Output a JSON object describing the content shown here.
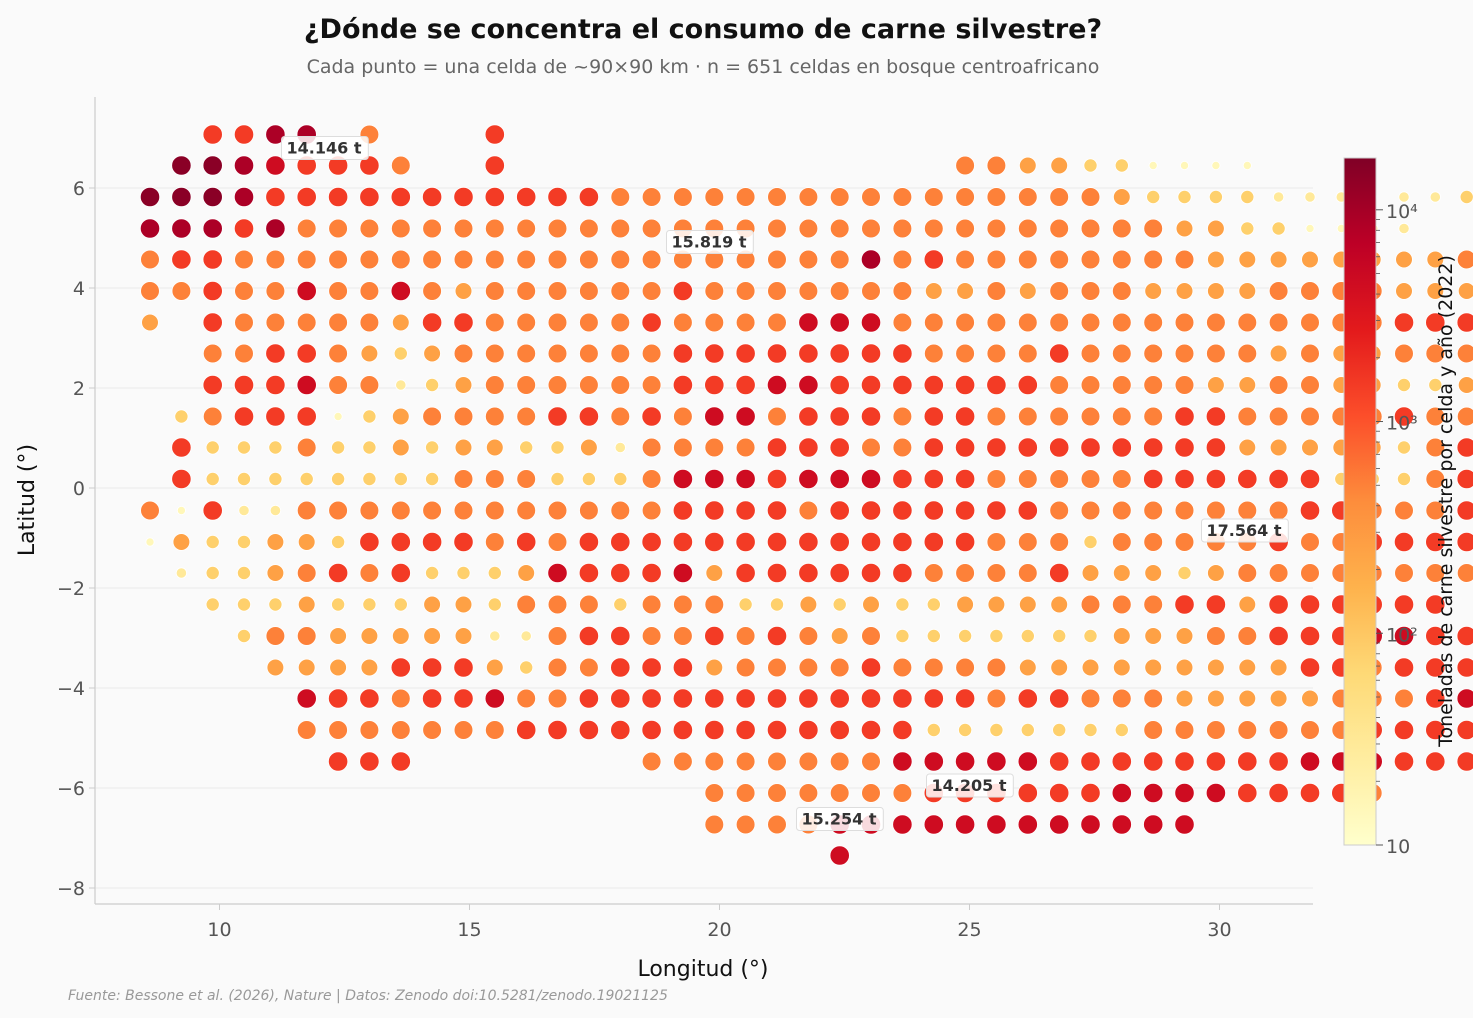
{
  "chart_data": {
    "type": "scatter",
    "title": "¿Dónde se concentra el consumo de carne silvestre?",
    "subtitle": "Cada punto = una celda de ~90×90 km · n = 651 celdas en bosque centroafricano",
    "xlabel": "Longitud (°)",
    "ylabel": "Latitud (°)",
    "xlim": [
      7.5,
      31.8
    ],
    "ylim": [
      -8.3,
      7.8
    ],
    "xticks": [
      "10",
      "15",
      "20",
      "25",
      "30"
    ],
    "yticks": [
      "−8",
      "−6",
      "−4",
      "−2",
      "0",
      "2",
      "4",
      "6"
    ],
    "grid": "horizontal",
    "colorbar": {
      "label": "Toneladas de carne silvestre por celda y año (2022)",
      "scale": "log",
      "range": [
        10,
        17564
      ],
      "ticks": [
        "10",
        "10²",
        "10³",
        "10⁴"
      ],
      "colormap": [
        "#ffffcc",
        "#ffeda0",
        "#fed976",
        "#feb24c",
        "#fd8d3c",
        "#fc4e2a",
        "#e31a1c",
        "#bd0026",
        "#800026"
      ]
    },
    "grid_spec": {
      "lon0": 8.61,
      "lon_step": 0.627,
      "lat0": -7.6,
      "lat_step": 0.6275
    },
    "rows": [
      {
        "lat": 7.07,
        "i0": 2,
        "v": "6688.5...6"
      },
      {
        "lat": 6.45,
        "i0": 1,
        "v": "99876665..6..............5544331111"
      },
      {
        "lat": 5.82,
        "i0": 0,
        "v": "9998666666666665555555555555555433332221223"
      },
      {
        "lat": 5.19,
        "i0": 0,
        "v": "88868555555555555555555555555555544331122"
      },
      {
        "lat": 4.57,
        "i0": 0,
        "v": "5665555555555555555555585655555555444444445533"
      },
      {
        "lat": 3.94,
        "i0": 0,
        "v": "556557557545555556555555544545554444555544456"
      },
      {
        "lat": 3.31,
        "i0": 0,
        "v": "4.655555466555556555577755555555555555556667"
      },
      {
        "lat": 2.69,
        "i0": 2,
        "v": "5566543455555556666666655556555555454455546"
      },
      {
        "lat": 2.06,
        "i0": 2,
        "v": "6667552345555556667766666665555544554433477"
      },
      {
        "lat": 1.43,
        "i0": 1,
        "v": "3566613455556656577566656655555566555556556"
      },
      {
        "lat": 0.81,
        "i0": 1,
        "v": "6333533434433425555666556666666666444443566"
      },
      {
        "lat": 0.18,
        "i0": 1,
        "v": "6333333335553335777677766655555666666333566"
      },
      {
        "lat": -0.45,
        "i0": 0,
        "v": "516225555555555556666566666665555555566555667"
      },
      {
        "lat": -1.08,
        "i0": 0,
        "v": "14334436666565666666666666655535555565566668"
      },
      {
        "lat": -1.7,
        "i0": 1,
        "v": "23345656333476667466666655556444345555555566666"
      },
      {
        "lat": -2.33,
        "i0": 2,
        "v": "3334333443555355533434334444555664666666"
      },
      {
        "lat": -2.96,
        "i0": 3,
        "v": "3554444422566556565453333333444556667766677"
      },
      {
        "lat": -3.59,
        "i0": 4,
        "v": "444466643556664555565555444444444665666665766"
      },
      {
        "lat": -4.21,
        "i0": 5,
        "v": "7665667556666666666666566555444445556766666666"
      },
      {
        "lat": -4.84,
        "i0": 5,
        "v": "555555566666666666663333333555555566665566"
      },
      {
        "lat": -5.47,
        "i0": 6,
        "v": "666"
      },
      {
        "lat": -5.47,
        "i0": 16,
        "v": "55555555777776666666677766666"
      },
      {
        "lat": -6.1,
        "i0": 18,
        "v": "5555555666666777766665"
      },
      {
        "lat": -6.73,
        "i0": 18,
        "v": "5555777777777777"
      },
      {
        "lat": -7.35,
        "i0": 22,
        "v": "7"
      }
    ],
    "annotations": [
      {
        "label": "14.146 t",
        "x": 11.1,
        "y": 6.45
      },
      {
        "label": "15.819 t",
        "x": 18.8,
        "y": 4.57
      },
      {
        "label": "17.564 t",
        "x": 29.5,
        "y": -1.2
      },
      {
        "label": "14.205 t",
        "x": 24.0,
        "y": -6.3
      },
      {
        "label": "15.254 t",
        "x": 21.4,
        "y": -6.97
      }
    ]
  },
  "footer": {
    "source": "Fuente: Bessone et al. (2026), Nature | Datos: Zenodo doi:10.5281/zenodo.19021125"
  }
}
